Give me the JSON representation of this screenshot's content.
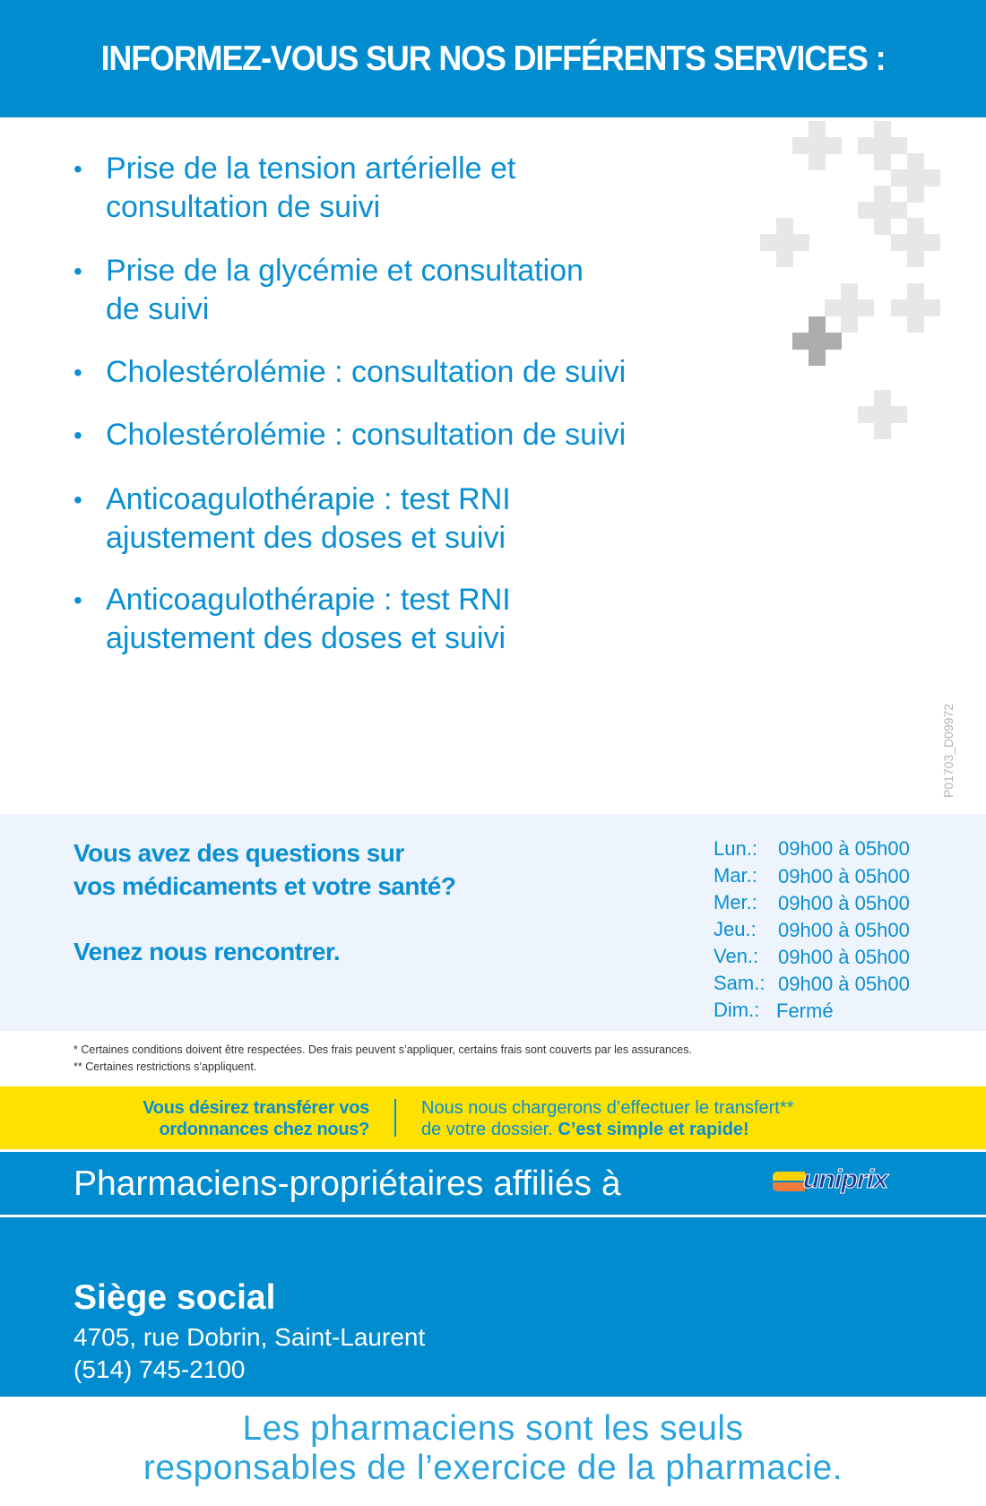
{
  "header": {
    "title": "INFORMEZ-VOUS SUR NOS DIFFÉRENTS SERVICES :"
  },
  "services": [
    {
      "line1": "Prise de la tension artérielle et",
      "line2": "consultation de suivi"
    },
    {
      "line1": "Prise de la glycémie et consultation",
      "line2": "de suivi"
    },
    {
      "line1": "Cholestérolémie : consultation de suivi",
      "line2": ""
    },
    {
      "line1": "Cholestérolémie : consultation de suivi",
      "line2": ""
    },
    {
      "line1": "Anticoagulothérapie : test RNI",
      "line2": "ajustement des doses et suivi"
    },
    {
      "line1": "Anticoagulothérapie : test RNI",
      "line2": "ajustement des doses et suivi"
    }
  ],
  "bullet": "•",
  "code": "P01703_D09972",
  "info": {
    "question_line1": "Vous avez des questions sur",
    "question_line2": "vos médicaments et votre santé?",
    "invite": "Venez nous rencontrer.",
    "hours": [
      {
        "day": "Lun.:",
        "time": "09h00 à 05h00"
      },
      {
        "day": "Mar.:",
        "time": "09h00 à 05h00"
      },
      {
        "day": "Mer.:",
        "time": "09h00 à 05h00"
      },
      {
        "day": "Jeu.:",
        "time": "09h00 à 05h00"
      },
      {
        "day": "Ven.:",
        "time": "09h00 à 05h00"
      },
      {
        "day": "Sam.:",
        "time": "09h00 à 05h00"
      },
      {
        "day": "Dim.:",
        "time": "Fermé"
      }
    ]
  },
  "footnotes": [
    "* Certaines conditions doivent être respectées. Des frais peuvent s’appliquer, certains frais sont couverts par les assurances.",
    "** Certaines restrictions s’appliquent."
  ],
  "transfer": {
    "left_line1": "Vous désirez transférer vos",
    "left_line2": "ordonnances chez nous?",
    "right_line1": "Nous nous chargerons d’effectuer le transfert**",
    "right_line2_a": "de votre dossier. ",
    "right_line2_b": "C’est simple et rapide!"
  },
  "affiliation": {
    "text": "Pharmaciens-propriétaires affiliés à",
    "logo": "uniprix"
  },
  "hq": {
    "title": "Siège social",
    "address": "4705, rue Dobrin, Saint-Laurent",
    "phone": "(514) 745-2100"
  },
  "tagline": {
    "line1": "Les pharmaciens sont les seuls",
    "line2": "responsables de l’exercice de la pharmacie."
  },
  "colors": {
    "brand_blue": "#008ccf",
    "yellow": "#fde100",
    "text_blue": "#0a8fd2",
    "logo_orange": "#f07c3c",
    "logo_yellow": "#ffd200",
    "logo_navy": "#1a3a8f"
  }
}
